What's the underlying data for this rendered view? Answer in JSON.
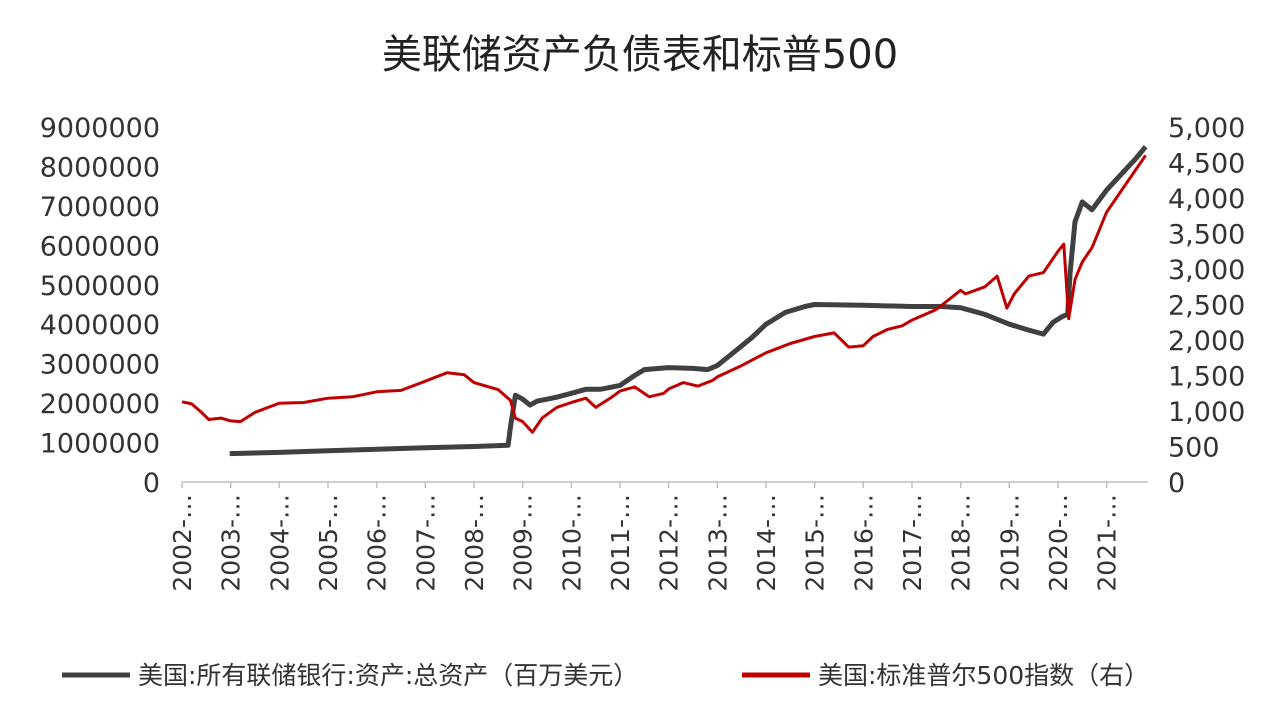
{
  "chart_data": {
    "type": "line",
    "title": "美联储资产负债表和标普500",
    "x_categories": [
      "2002-…",
      "2003-…",
      "2004-…",
      "2005-…",
      "2006-…",
      "2007-…",
      "2008-…",
      "2009-…",
      "2010-…",
      "2011-…",
      "2012-…",
      "2013-…",
      "2014-…",
      "2015-…",
      "2016-…",
      "2017-…",
      "2018-…",
      "2019-…",
      "2020-…",
      "2021-…"
    ],
    "x_range": [
      2002.0,
      2021.85
    ],
    "y_left": {
      "ticks": [
        "0",
        "1000000",
        "2000000",
        "3000000",
        "4000000",
        "5000000",
        "6000000",
        "7000000",
        "8000000",
        "9000000"
      ],
      "range": [
        0,
        9000000
      ]
    },
    "y_right": {
      "ticks": [
        "0",
        "500",
        "1,000",
        "1,500",
        "2,000",
        "2,500",
        "3,000",
        "3,500",
        "4,000",
        "4,500",
        "5,000"
      ],
      "range": [
        0,
        5000
      ]
    },
    "grid": false,
    "legend_position": "bottom",
    "series": [
      {
        "name": "美国:所有联储银行:资产:总资产（百万美元）",
        "axis": "left",
        "color": "#404040",
        "points": [
          [
            2002.98,
            720000
          ],
          [
            2004.0,
            750000
          ],
          [
            2005.0,
            790000
          ],
          [
            2006.0,
            830000
          ],
          [
            2007.0,
            870000
          ],
          [
            2008.0,
            900000
          ],
          [
            2008.7,
            930000
          ],
          [
            2008.75,
            1400000
          ],
          [
            2008.85,
            2200000
          ],
          [
            2009.0,
            2100000
          ],
          [
            2009.15,
            1950000
          ],
          [
            2009.3,
            2050000
          ],
          [
            2009.5,
            2100000
          ],
          [
            2009.7,
            2150000
          ],
          [
            2010.0,
            2250000
          ],
          [
            2010.3,
            2350000
          ],
          [
            2010.6,
            2350000
          ],
          [
            2011.0,
            2450000
          ],
          [
            2011.3,
            2700000
          ],
          [
            2011.5,
            2850000
          ],
          [
            2012.0,
            2900000
          ],
          [
            2012.5,
            2880000
          ],
          [
            2012.8,
            2850000
          ],
          [
            2013.0,
            2950000
          ],
          [
            2013.3,
            3250000
          ],
          [
            2013.7,
            3650000
          ],
          [
            2014.0,
            4000000
          ],
          [
            2014.4,
            4300000
          ],
          [
            2014.8,
            4450000
          ],
          [
            2015.0,
            4500000
          ],
          [
            2016.0,
            4480000
          ],
          [
            2017.0,
            4450000
          ],
          [
            2017.6,
            4450000
          ],
          [
            2018.0,
            4420000
          ],
          [
            2018.5,
            4250000
          ],
          [
            2019.0,
            4000000
          ],
          [
            2019.4,
            3850000
          ],
          [
            2019.7,
            3750000
          ],
          [
            2019.9,
            4050000
          ],
          [
            2020.1,
            4200000
          ],
          [
            2020.2,
            4250000
          ],
          [
            2020.25,
            5300000
          ],
          [
            2020.35,
            6600000
          ],
          [
            2020.5,
            7100000
          ],
          [
            2020.7,
            6900000
          ],
          [
            2021.0,
            7400000
          ],
          [
            2021.3,
            7800000
          ],
          [
            2021.6,
            8200000
          ],
          [
            2021.8,
            8500000
          ]
        ]
      },
      {
        "name": "美国:标准普尔500指数（右）",
        "axis": "right",
        "color": "#c00000",
        "points": [
          [
            2002.0,
            1130
          ],
          [
            2002.2,
            1100
          ],
          [
            2002.4,
            980
          ],
          [
            2002.55,
            880
          ],
          [
            2002.8,
            900
          ],
          [
            2003.0,
            860
          ],
          [
            2003.2,
            850
          ],
          [
            2003.5,
            980
          ],
          [
            2004.0,
            1110
          ],
          [
            2004.5,
            1120
          ],
          [
            2005.0,
            1180
          ],
          [
            2005.5,
            1200
          ],
          [
            2006.0,
            1270
          ],
          [
            2006.5,
            1290
          ],
          [
            2007.0,
            1420
          ],
          [
            2007.45,
            1540
          ],
          [
            2007.8,
            1510
          ],
          [
            2008.0,
            1400
          ],
          [
            2008.5,
            1300
          ],
          [
            2008.75,
            1150
          ],
          [
            2008.85,
            900
          ],
          [
            2009.0,
            850
          ],
          [
            2009.2,
            700
          ],
          [
            2009.4,
            900
          ],
          [
            2009.7,
            1050
          ],
          [
            2010.0,
            1120
          ],
          [
            2010.3,
            1180
          ],
          [
            2010.5,
            1050
          ],
          [
            2010.8,
            1180
          ],
          [
            2011.0,
            1280
          ],
          [
            2011.3,
            1340
          ],
          [
            2011.6,
            1200
          ],
          [
            2011.9,
            1250
          ],
          [
            2012.0,
            1310
          ],
          [
            2012.3,
            1400
          ],
          [
            2012.6,
            1350
          ],
          [
            2012.9,
            1430
          ],
          [
            2013.0,
            1480
          ],
          [
            2013.5,
            1640
          ],
          [
            2014.0,
            1820
          ],
          [
            2014.5,
            1950
          ],
          [
            2015.0,
            2050
          ],
          [
            2015.4,
            2100
          ],
          [
            2015.7,
            1900
          ],
          [
            2016.0,
            1920
          ],
          [
            2016.2,
            2050
          ],
          [
            2016.5,
            2150
          ],
          [
            2016.8,
            2200
          ],
          [
            2017.0,
            2280
          ],
          [
            2017.5,
            2430
          ],
          [
            2018.0,
            2700
          ],
          [
            2018.1,
            2650
          ],
          [
            2018.5,
            2750
          ],
          [
            2018.75,
            2900
          ],
          [
            2018.95,
            2450
          ],
          [
            2019.1,
            2650
          ],
          [
            2019.4,
            2900
          ],
          [
            2019.7,
            2950
          ],
          [
            2020.0,
            3250
          ],
          [
            2020.12,
            3350
          ],
          [
            2020.22,
            2300
          ],
          [
            2020.35,
            2850
          ],
          [
            2020.5,
            3100
          ],
          [
            2020.7,
            3300
          ],
          [
            2021.0,
            3800
          ],
          [
            2021.3,
            4100
          ],
          [
            2021.6,
            4400
          ],
          [
            2021.8,
            4600
          ]
        ]
      }
    ]
  }
}
